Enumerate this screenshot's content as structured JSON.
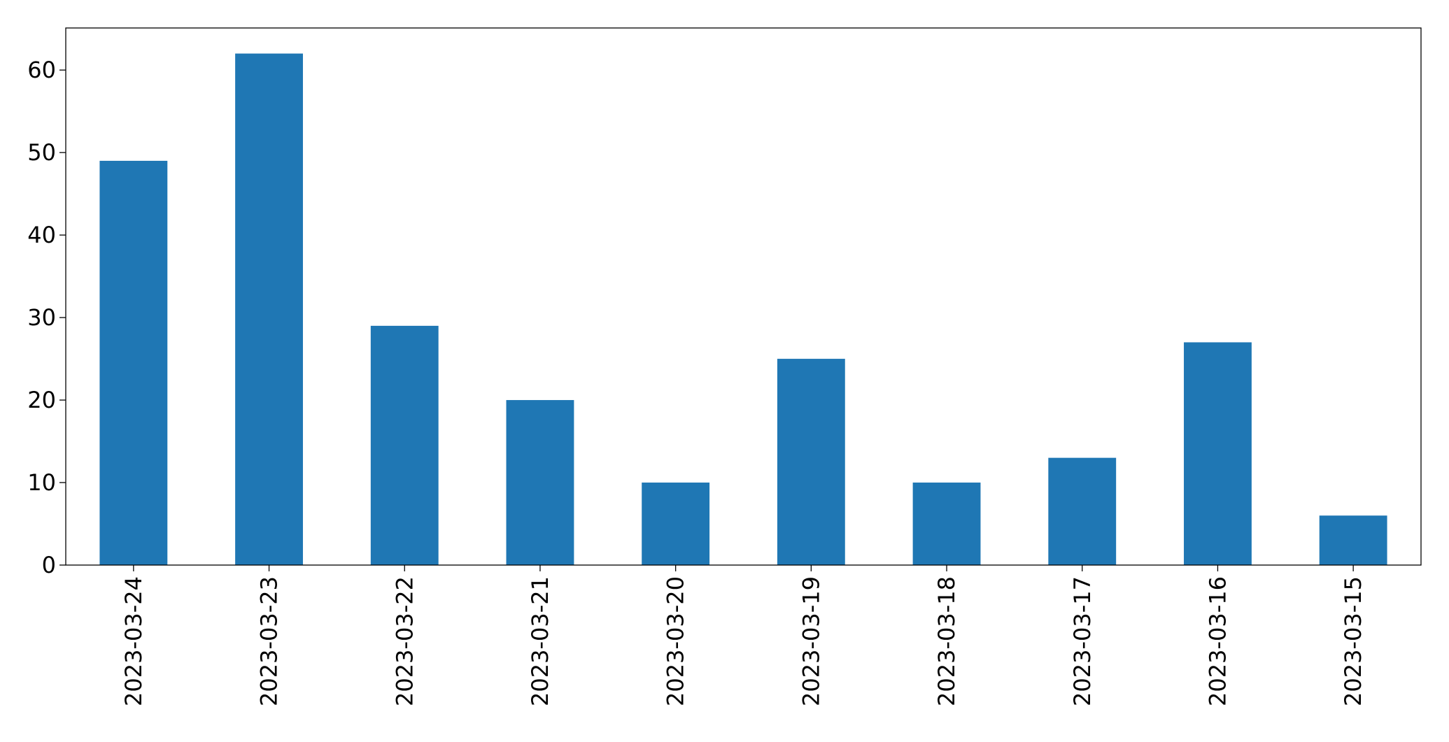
{
  "chart_data": {
    "type": "bar",
    "categories": [
      "2023-03-24",
      "2023-03-23",
      "2023-03-22",
      "2023-03-21",
      "2023-03-20",
      "2023-03-19",
      "2023-03-18",
      "2023-03-17",
      "2023-03-16",
      "2023-03-15"
    ],
    "values": [
      49,
      62,
      29,
      20,
      10,
      25,
      10,
      13,
      27,
      6
    ],
    "color": "#1f77b4",
    "ylim": [
      0,
      65.1
    ],
    "yticks": [
      0,
      10,
      20,
      30,
      40,
      50,
      60
    ],
    "grid": false
  }
}
